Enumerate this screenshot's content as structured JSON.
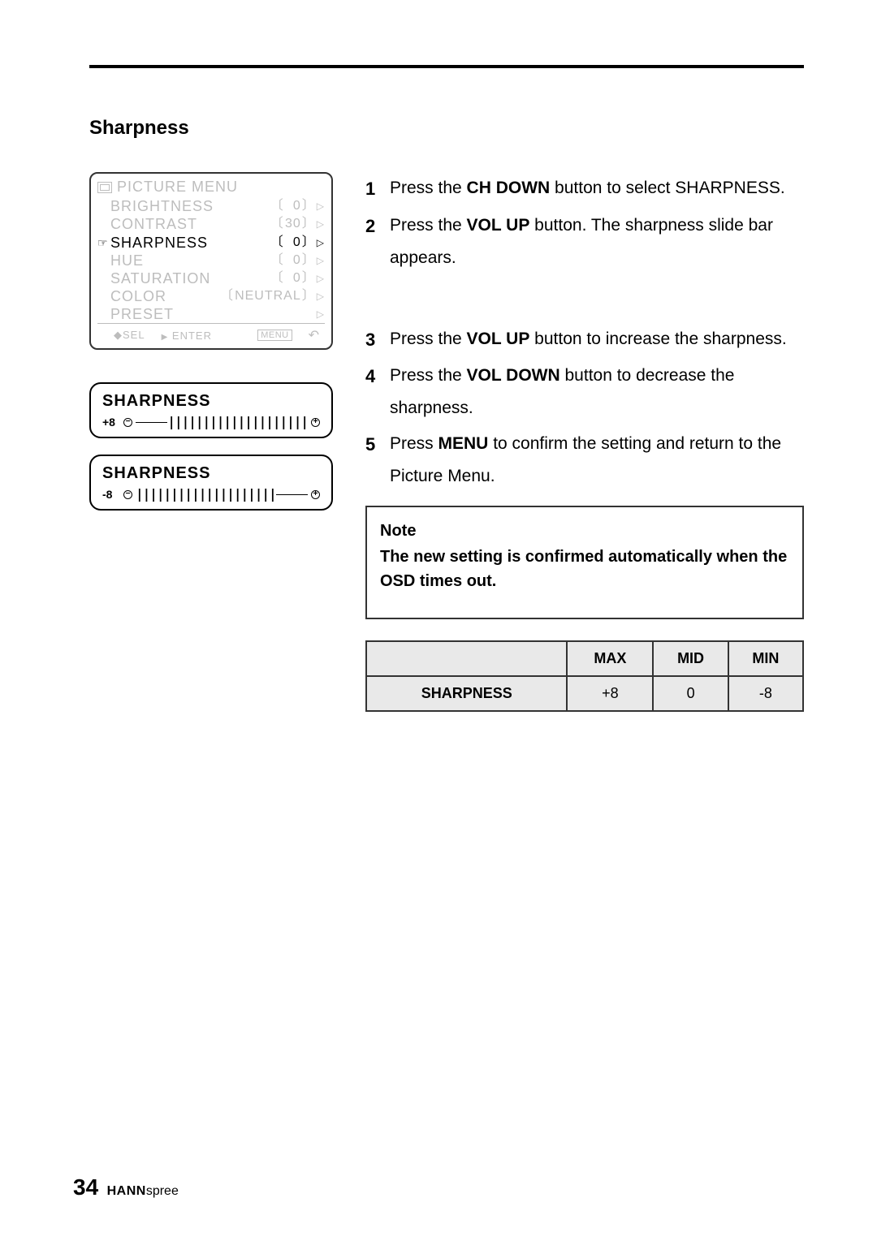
{
  "section_title": "Sharpness",
  "osd": {
    "title": "PICTURE   MENU",
    "rows": [
      {
        "label": "BRIGHTNESS",
        "value": "0",
        "active": false
      },
      {
        "label": "CONTRAST",
        "value": "30",
        "active": false
      },
      {
        "label": "SHARPNESS",
        "value": "0",
        "active": true
      },
      {
        "label": "HUE",
        "value": "0",
        "active": false
      },
      {
        "label": "SATURATION",
        "value": "0",
        "active": false
      }
    ],
    "color_row": {
      "label": "COLOR",
      "value": "NEUTRAL"
    },
    "preset_row": {
      "label": "PRESET"
    },
    "footer": {
      "sel": "SEL",
      "enter": "ENTER",
      "menu": "MENU"
    }
  },
  "sliders": [
    {
      "title": "SHARPNESS",
      "value": "+8",
      "direction": "right"
    },
    {
      "title": "SHARPNESS",
      "value": "-8",
      "direction": "left"
    }
  ],
  "steps_a": [
    {
      "n": "1",
      "pre": "Press the ",
      "bold": "CH DOWN",
      "post": " button to select SHARPNESS."
    },
    {
      "n": "2",
      "pre": "Press the ",
      "bold": "VOL UP",
      "post": " button. The sharpness slide bar appears."
    }
  ],
  "steps_b": [
    {
      "n": "3",
      "pre": "Press the ",
      "bold": "VOL UP",
      "post": " button to increase the sharpness."
    },
    {
      "n": "4",
      "pre": "Press the ",
      "bold": "VOL DOWN",
      "post": " button to decrease the sharpness."
    },
    {
      "n": "5",
      "pre": "Press ",
      "bold": "MENU",
      "post": " to confirm the setting and return to the Picture Menu."
    }
  ],
  "note": {
    "title": "Note",
    "body": "The new setting is confirmed automatically when the OSD times out."
  },
  "table": {
    "headers": [
      "",
      "MAX",
      "MID",
      "MIN"
    ],
    "row_label": "SHARPNESS",
    "values": [
      "+8",
      "0",
      "-8"
    ]
  },
  "footer": {
    "page": "34",
    "brand1": "HANN",
    "brand2": "spree"
  },
  "colors": {
    "text": "#000000",
    "muted": "#bdbdbd",
    "table_bg": "#e9e9e9",
    "border": "#333333",
    "background": "#ffffff"
  }
}
